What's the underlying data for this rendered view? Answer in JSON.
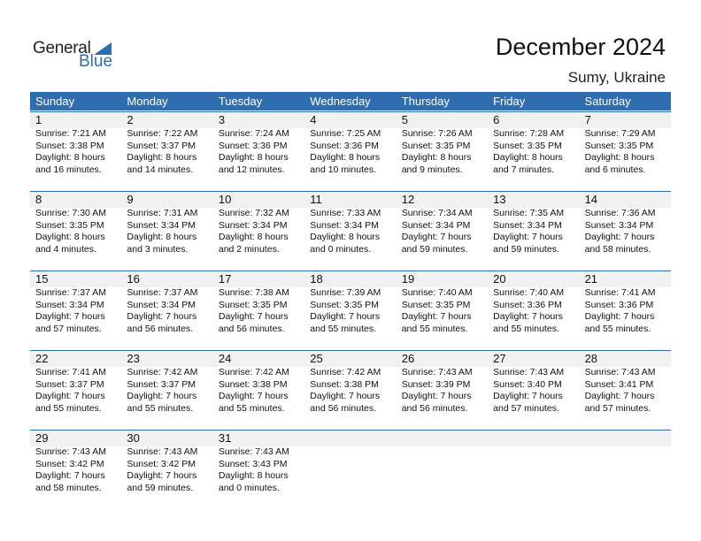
{
  "logo": {
    "line1": "General",
    "line2": "Blue"
  },
  "header": {
    "title": "December 2024",
    "location": "Sumy, Ukraine"
  },
  "colors": {
    "accent": "#2e6db0",
    "band": "#f1f1f1"
  },
  "weekdays": [
    "Sunday",
    "Monday",
    "Tuesday",
    "Wednesday",
    "Thursday",
    "Friday",
    "Saturday"
  ],
  "weeks": [
    [
      {
        "day": "1",
        "lines": [
          "Sunrise: 7:21 AM",
          "Sunset: 3:38 PM",
          "Daylight: 8 hours",
          "and 16 minutes."
        ]
      },
      {
        "day": "2",
        "lines": [
          "Sunrise: 7:22 AM",
          "Sunset: 3:37 PM",
          "Daylight: 8 hours",
          "and 14 minutes."
        ]
      },
      {
        "day": "3",
        "lines": [
          "Sunrise: 7:24 AM",
          "Sunset: 3:36 PM",
          "Daylight: 8 hours",
          "and 12 minutes."
        ]
      },
      {
        "day": "4",
        "lines": [
          "Sunrise: 7:25 AM",
          "Sunset: 3:36 PM",
          "Daylight: 8 hours",
          "and 10 minutes."
        ]
      },
      {
        "day": "5",
        "lines": [
          "Sunrise: 7:26 AM",
          "Sunset: 3:35 PM",
          "Daylight: 8 hours",
          "and 9 minutes."
        ]
      },
      {
        "day": "6",
        "lines": [
          "Sunrise: 7:28 AM",
          "Sunset: 3:35 PM",
          "Daylight: 8 hours",
          "and 7 minutes."
        ]
      },
      {
        "day": "7",
        "lines": [
          "Sunrise: 7:29 AM",
          "Sunset: 3:35 PM",
          "Daylight: 8 hours",
          "and 6 minutes."
        ]
      }
    ],
    [
      {
        "day": "8",
        "lines": [
          "Sunrise: 7:30 AM",
          "Sunset: 3:35 PM",
          "Daylight: 8 hours",
          "and 4 minutes."
        ]
      },
      {
        "day": "9",
        "lines": [
          "Sunrise: 7:31 AM",
          "Sunset: 3:34 PM",
          "Daylight: 8 hours",
          "and 3 minutes."
        ]
      },
      {
        "day": "10",
        "lines": [
          "Sunrise: 7:32 AM",
          "Sunset: 3:34 PM",
          "Daylight: 8 hours",
          "and 2 minutes."
        ]
      },
      {
        "day": "11",
        "lines": [
          "Sunrise: 7:33 AM",
          "Sunset: 3:34 PM",
          "Daylight: 8 hours",
          "and 0 minutes."
        ]
      },
      {
        "day": "12",
        "lines": [
          "Sunrise: 7:34 AM",
          "Sunset: 3:34 PM",
          "Daylight: 7 hours",
          "and 59 minutes."
        ]
      },
      {
        "day": "13",
        "lines": [
          "Sunrise: 7:35 AM",
          "Sunset: 3:34 PM",
          "Daylight: 7 hours",
          "and 59 minutes."
        ]
      },
      {
        "day": "14",
        "lines": [
          "Sunrise: 7:36 AM",
          "Sunset: 3:34 PM",
          "Daylight: 7 hours",
          "and 58 minutes."
        ]
      }
    ],
    [
      {
        "day": "15",
        "lines": [
          "Sunrise: 7:37 AM",
          "Sunset: 3:34 PM",
          "Daylight: 7 hours",
          "and 57 minutes."
        ]
      },
      {
        "day": "16",
        "lines": [
          "Sunrise: 7:37 AM",
          "Sunset: 3:34 PM",
          "Daylight: 7 hours",
          "and 56 minutes."
        ]
      },
      {
        "day": "17",
        "lines": [
          "Sunrise: 7:38 AM",
          "Sunset: 3:35 PM",
          "Daylight: 7 hours",
          "and 56 minutes."
        ]
      },
      {
        "day": "18",
        "lines": [
          "Sunrise: 7:39 AM",
          "Sunset: 3:35 PM",
          "Daylight: 7 hours",
          "and 55 minutes."
        ]
      },
      {
        "day": "19",
        "lines": [
          "Sunrise: 7:40 AM",
          "Sunset: 3:35 PM",
          "Daylight: 7 hours",
          "and 55 minutes."
        ]
      },
      {
        "day": "20",
        "lines": [
          "Sunrise: 7:40 AM",
          "Sunset: 3:36 PM",
          "Daylight: 7 hours",
          "and 55 minutes."
        ]
      },
      {
        "day": "21",
        "lines": [
          "Sunrise: 7:41 AM",
          "Sunset: 3:36 PM",
          "Daylight: 7 hours",
          "and 55 minutes."
        ]
      }
    ],
    [
      {
        "day": "22",
        "lines": [
          "Sunrise: 7:41 AM",
          "Sunset: 3:37 PM",
          "Daylight: 7 hours",
          "and 55 minutes."
        ]
      },
      {
        "day": "23",
        "lines": [
          "Sunrise: 7:42 AM",
          "Sunset: 3:37 PM",
          "Daylight: 7 hours",
          "and 55 minutes."
        ]
      },
      {
        "day": "24",
        "lines": [
          "Sunrise: 7:42 AM",
          "Sunset: 3:38 PM",
          "Daylight: 7 hours",
          "and 55 minutes."
        ]
      },
      {
        "day": "25",
        "lines": [
          "Sunrise: 7:42 AM",
          "Sunset: 3:38 PM",
          "Daylight: 7 hours",
          "and 56 minutes."
        ]
      },
      {
        "day": "26",
        "lines": [
          "Sunrise: 7:43 AM",
          "Sunset: 3:39 PM",
          "Daylight: 7 hours",
          "and 56 minutes."
        ]
      },
      {
        "day": "27",
        "lines": [
          "Sunrise: 7:43 AM",
          "Sunset: 3:40 PM",
          "Daylight: 7 hours",
          "and 57 minutes."
        ]
      },
      {
        "day": "28",
        "lines": [
          "Sunrise: 7:43 AM",
          "Sunset: 3:41 PM",
          "Daylight: 7 hours",
          "and 57 minutes."
        ]
      }
    ],
    [
      {
        "day": "29",
        "lines": [
          "Sunrise: 7:43 AM",
          "Sunset: 3:42 PM",
          "Daylight: 7 hours",
          "and 58 minutes."
        ]
      },
      {
        "day": "30",
        "lines": [
          "Sunrise: 7:43 AM",
          "Sunset: 3:42 PM",
          "Daylight: 7 hours",
          "and 59 minutes."
        ]
      },
      {
        "day": "31",
        "lines": [
          "Sunrise: 7:43 AM",
          "Sunset: 3:43 PM",
          "Daylight: 8 hours",
          "and 0 minutes."
        ]
      }
    ]
  ]
}
